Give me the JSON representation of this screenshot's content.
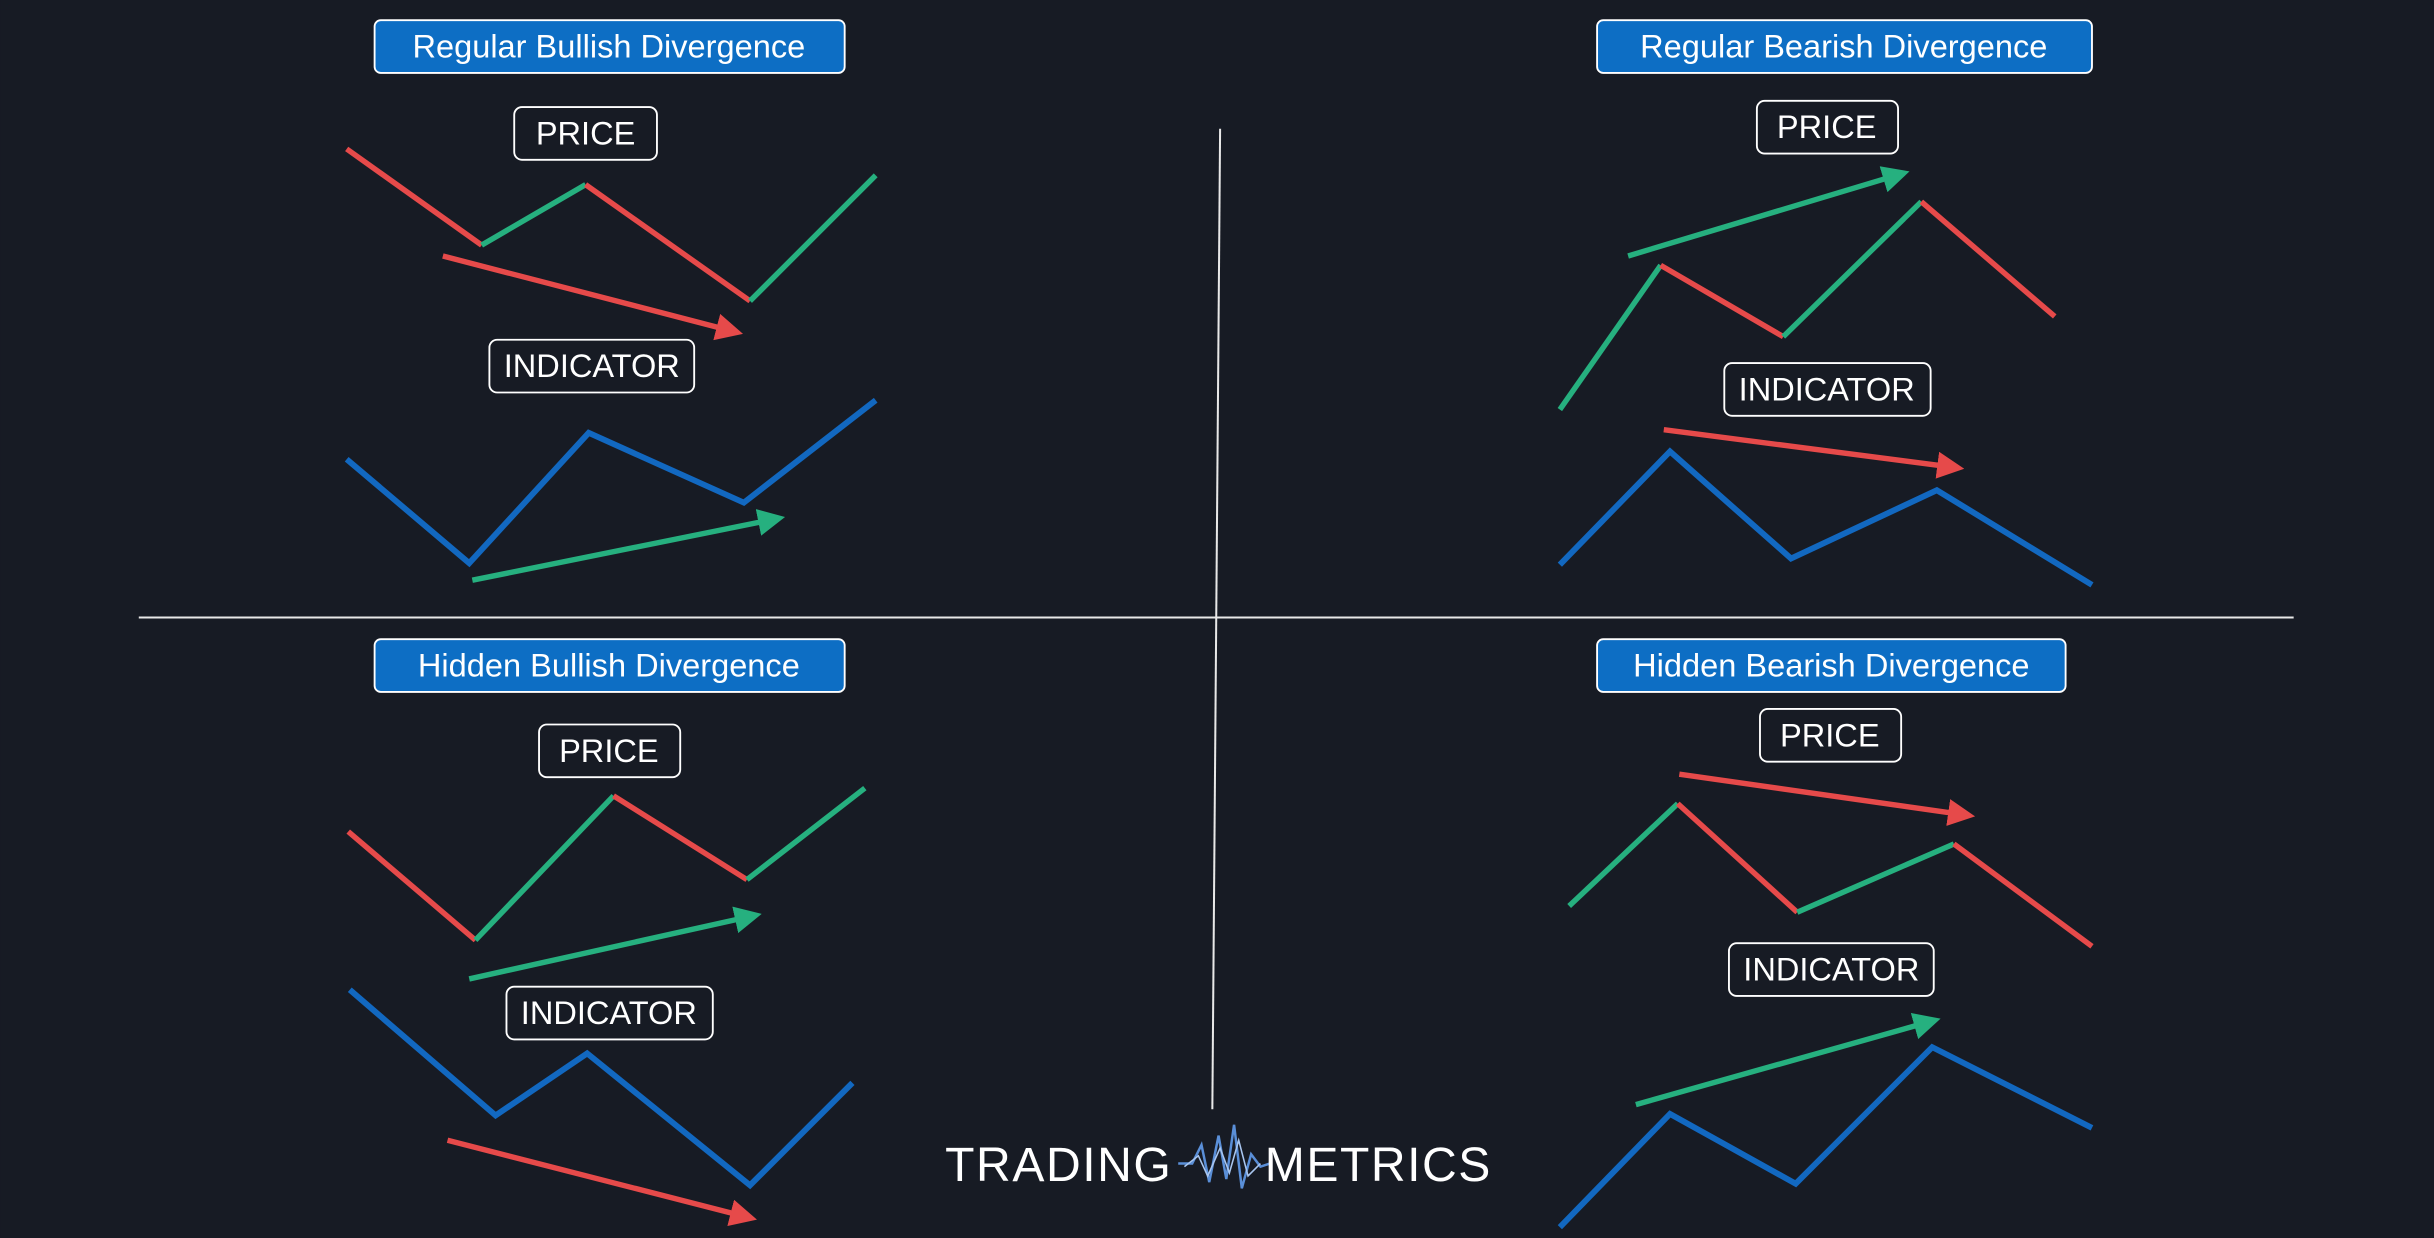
{
  "panels": [
    {
      "title": "Regular Bullish Divergence",
      "price_label": "PRICE",
      "indicator_label": "INDICATOR"
    },
    {
      "title": "Regular Bearish Divergence",
      "price_label": "PRICE",
      "indicator_label": "INDICATOR"
    },
    {
      "title": "Hidden Bullish Divergence",
      "price_label": "PRICE",
      "indicator_label": "INDICATOR"
    },
    {
      "title": "Hidden Bearish Divergence",
      "price_label": "PRICE",
      "indicator_label": "INDICATOR"
    }
  ],
  "logo": {
    "left": "TRADING",
    "right": "METRICS"
  }
}
